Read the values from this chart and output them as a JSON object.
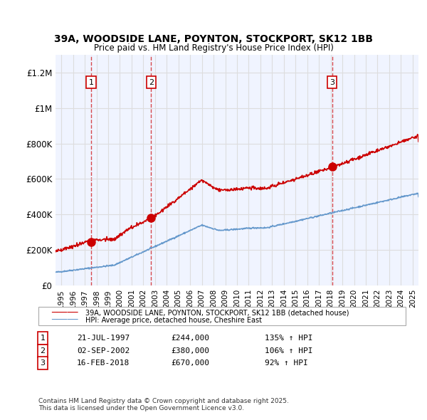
{
  "title_line1": "39A, WOODSIDE LANE, POYNTON, STOCKPORT, SK12 1BB",
  "title_line2": "Price paid vs. HM Land Registry's House Price Index (HPI)",
  "ylabel": "",
  "xlim_start": 1994.5,
  "xlim_end": 2025.5,
  "ylim": [
    0,
    1300000
  ],
  "yticks": [
    0,
    200000,
    400000,
    600000,
    800000,
    1000000,
    1200000
  ],
  "ytick_labels": [
    "£0",
    "£200K",
    "£400K",
    "£600K",
    "£800K",
    "£1M",
    "£1.2M"
  ],
  "xticks": [
    1995,
    1996,
    1997,
    1998,
    1999,
    2000,
    2001,
    2002,
    2003,
    2004,
    2005,
    2006,
    2007,
    2008,
    2009,
    2010,
    2011,
    2012,
    2013,
    2014,
    2015,
    2016,
    2017,
    2018,
    2019,
    2020,
    2021,
    2022,
    2023,
    2024,
    2025
  ],
  "purchase_dates": [
    1997.55,
    2002.67,
    2018.12
  ],
  "purchase_prices": [
    244000,
    380000,
    670000
  ],
  "purchase_labels": [
    "1",
    "2",
    "3"
  ],
  "hpi_color": "#6699cc",
  "price_color": "#cc0000",
  "purchase_marker_color": "#cc0000",
  "dashed_line_color": "#cc0000",
  "grid_color": "#dddddd",
  "background_color": "#f0f4ff",
  "legend_entries": [
    "39A, WOODSIDE LANE, POYNTON, STOCKPORT, SK12 1BB (detached house)",
    "HPI: Average price, detached house, Cheshire East"
  ],
  "table_rows": [
    {
      "num": "1",
      "date": "21-JUL-1997",
      "price": "£244,000",
      "hpi": "135% ↑ HPI"
    },
    {
      "num": "2",
      "date": "02-SEP-2002",
      "price": "£380,000",
      "hpi": "106% ↑ HPI"
    },
    {
      "num": "3",
      "date": "16-FEB-2018",
      "price": "£670,000",
      "hpi": "92% ↑ HPI"
    }
  ],
  "footnote": "Contains HM Land Registry data © Crown copyright and database right 2025.\nThis data is licensed under the Open Government Licence v3.0."
}
